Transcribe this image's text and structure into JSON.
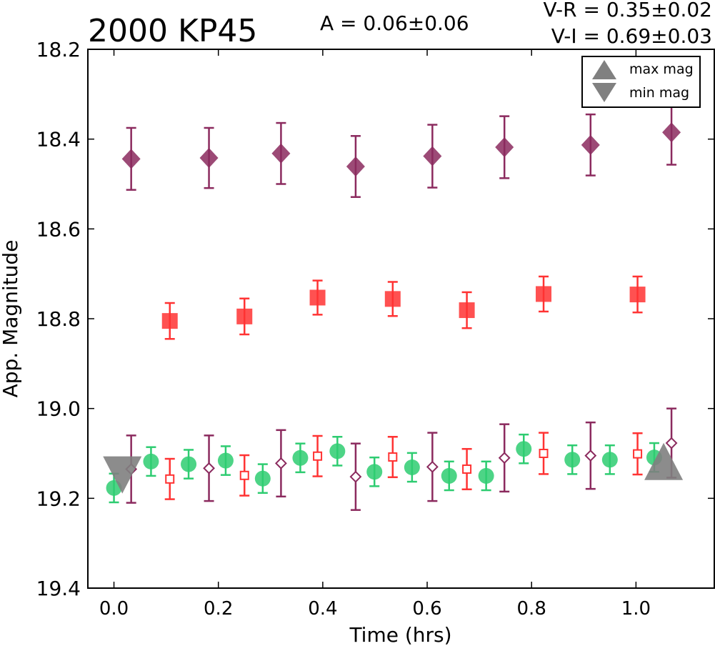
{
  "chart_data": {
    "type": "scatter",
    "title": "2000 KP45",
    "annotations": {
      "amplitude": "A  = 0.06±0.06",
      "v_r": "V-R = 0.35±0.02",
      "v_i": "V-I  = 0.69±0.03"
    },
    "xlabel": "Time (hrs)",
    "ylabel": "App. Magnitude",
    "xlim": [
      -0.05,
      1.15
    ],
    "ylim": [
      19.4,
      18.2
    ],
    "y_inverted": true,
    "xticks": [
      "0.0",
      "0.2",
      "0.4",
      "0.6",
      "0.8",
      "1.0"
    ],
    "yticks": [
      "18.2",
      "18.4",
      "18.6",
      "18.8",
      "19.0",
      "19.2",
      "19.4"
    ],
    "legend": {
      "placement": "top-right",
      "entries": [
        {
          "label": "max mag",
          "marker": "triangle-up",
          "color": "#808080"
        },
        {
          "label": "min mag",
          "marker": "triangle-down",
          "color": "#808080"
        }
      ]
    },
    "series": [
      {
        "marker": "circle",
        "filled": true,
        "color": "#2ecc71",
        "points": [
          {
            "x": 0.0,
            "y": 19.177,
            "err": 0.032
          },
          {
            "x": 0.071,
            "y": 19.118,
            "err": 0.032
          },
          {
            "x": 0.143,
            "y": 19.124,
            "err": 0.032
          },
          {
            "x": 0.214,
            "y": 19.116,
            "err": 0.032
          },
          {
            "x": 0.285,
            "y": 19.156,
            "err": 0.032
          },
          {
            "x": 0.357,
            "y": 19.11,
            "err": 0.032
          },
          {
            "x": 0.428,
            "y": 19.095,
            "err": 0.032
          },
          {
            "x": 0.499,
            "y": 19.141,
            "err": 0.032
          },
          {
            "x": 0.571,
            "y": 19.131,
            "err": 0.032
          },
          {
            "x": 0.642,
            "y": 19.15,
            "err": 0.032
          },
          {
            "x": 0.713,
            "y": 19.15,
            "err": 0.032
          },
          {
            "x": 0.785,
            "y": 19.09,
            "err": 0.032
          },
          {
            "x": 0.878,
            "y": 19.114,
            "err": 0.032
          },
          {
            "x": 0.95,
            "y": 19.114,
            "err": 0.032
          },
          {
            "x": 1.035,
            "y": 19.109,
            "err": 0.032
          }
        ]
      },
      {
        "marker": "square",
        "filled": true,
        "color": "#ff3333",
        "points": [
          {
            "x": 0.107,
            "y": 18.805,
            "err": 0.04
          },
          {
            "x": 0.25,
            "y": 18.795,
            "err": 0.04
          },
          {
            "x": 0.39,
            "y": 18.753,
            "err": 0.038
          },
          {
            "x": 0.534,
            "y": 18.756,
            "err": 0.038
          },
          {
            "x": 0.676,
            "y": 18.781,
            "err": 0.04
          },
          {
            "x": 0.823,
            "y": 18.745,
            "err": 0.039
          },
          {
            "x": 1.003,
            "y": 18.746,
            "err": 0.04
          }
        ]
      },
      {
        "marker": "square",
        "filled": false,
        "color": "#ff3333",
        "points": [
          {
            "x": 0.107,
            "y": 19.157,
            "err": 0.045
          },
          {
            "x": 0.25,
            "y": 19.149,
            "err": 0.045
          },
          {
            "x": 0.39,
            "y": 19.106,
            "err": 0.045
          },
          {
            "x": 0.534,
            "y": 19.108,
            "err": 0.045
          },
          {
            "x": 0.676,
            "y": 19.135,
            "err": 0.045
          },
          {
            "x": 0.823,
            "y": 19.1,
            "err": 0.046
          },
          {
            "x": 1.003,
            "y": 19.101,
            "err": 0.046
          }
        ]
      },
      {
        "marker": "diamond",
        "filled": true,
        "color": "#8b2a5e",
        "points": [
          {
            "x": 0.033,
            "y": 18.444,
            "err": 0.069
          },
          {
            "x": 0.182,
            "y": 18.442,
            "err": 0.067
          },
          {
            "x": 0.32,
            "y": 18.432,
            "err": 0.068
          },
          {
            "x": 0.463,
            "y": 18.461,
            "err": 0.068
          },
          {
            "x": 0.61,
            "y": 18.438,
            "err": 0.07
          },
          {
            "x": 0.748,
            "y": 18.418,
            "err": 0.069
          },
          {
            "x": 0.913,
            "y": 18.413,
            "err": 0.068
          },
          {
            "x": 1.068,
            "y": 18.385,
            "err": 0.072
          }
        ]
      },
      {
        "marker": "diamond",
        "filled": false,
        "color": "#8b2a5e",
        "points": [
          {
            "x": 0.033,
            "y": 19.135,
            "err": 0.075
          },
          {
            "x": 0.182,
            "y": 19.133,
            "err": 0.073
          },
          {
            "x": 0.32,
            "y": 19.122,
            "err": 0.074
          },
          {
            "x": 0.463,
            "y": 19.152,
            "err": 0.074
          },
          {
            "x": 0.61,
            "y": 19.13,
            "err": 0.076
          },
          {
            "x": 0.748,
            "y": 19.11,
            "err": 0.075
          },
          {
            "x": 0.913,
            "y": 19.105,
            "err": 0.074
          },
          {
            "x": 1.068,
            "y": 19.077,
            "err": 0.077
          }
        ]
      }
    ],
    "extrema": [
      {
        "label": "min mag",
        "marker": "triangle-down",
        "x": 0.016,
        "y": 19.148
      },
      {
        "label": "max mag",
        "marker": "triangle-up",
        "x": 1.053,
        "y": 19.118
      }
    ]
  }
}
